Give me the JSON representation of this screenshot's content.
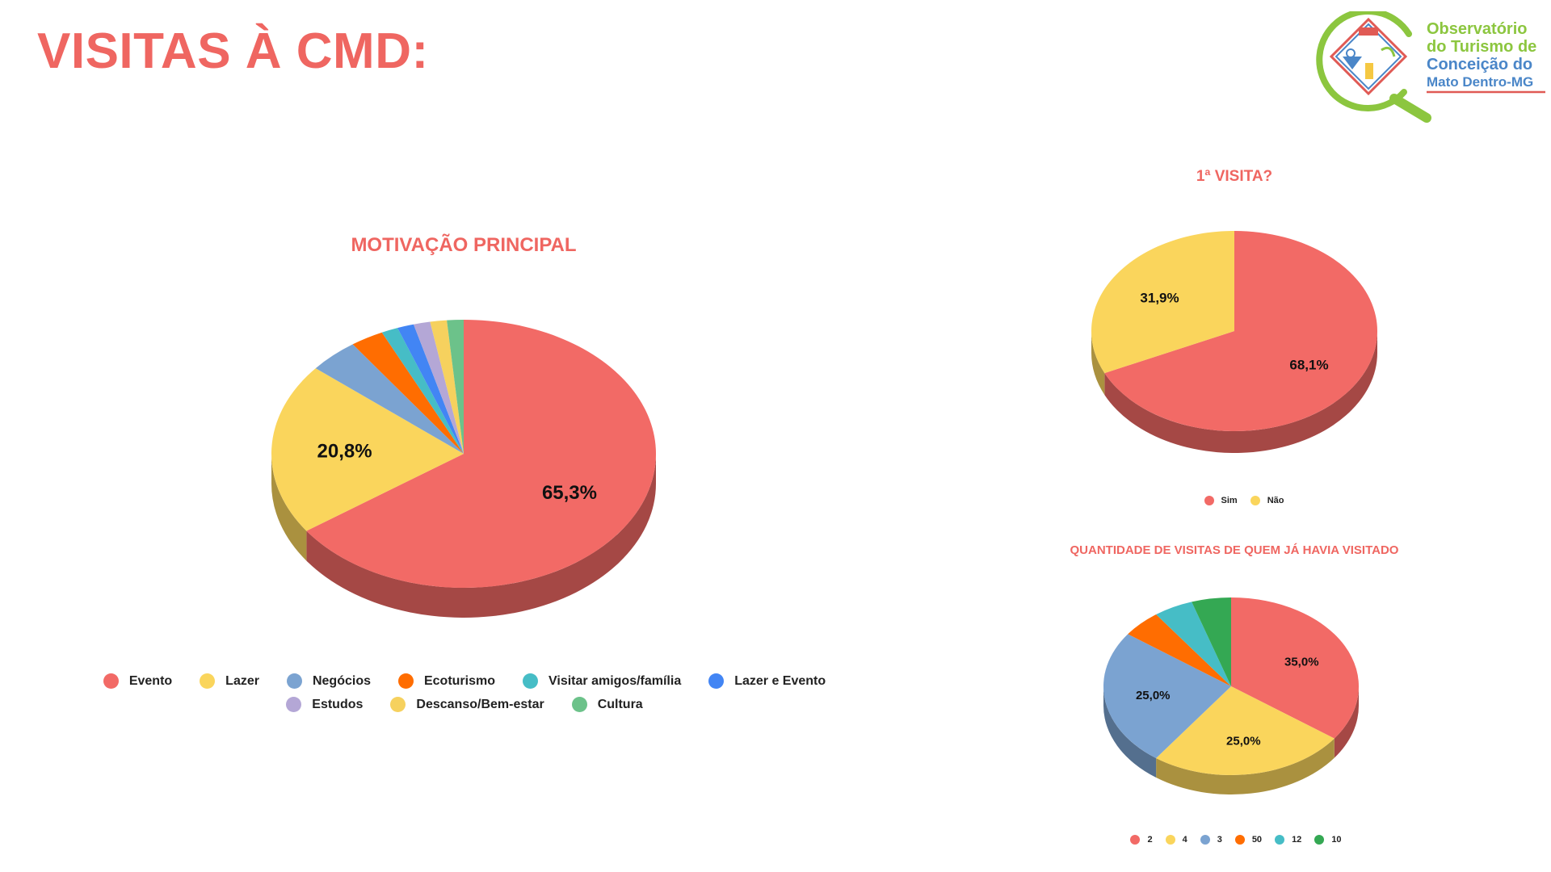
{
  "page": {
    "title": "VISITAS À CMD:"
  },
  "logo": {
    "line1": "Observatório",
    "line2": "do Turismo de",
    "line3": "Conceição do",
    "line4": "Mato Dentro-MG",
    "colors": {
      "green": "#8cc63f",
      "blue": "#4a86c8",
      "red": "#e05a55",
      "yellow": "#f5c842"
    }
  },
  "chart_data": [
    {
      "id": "motivacao",
      "type": "pie",
      "title": "MOTIVAÇÃO PRINCIPAL",
      "categories": [
        "Evento",
        "Lazer",
        "Negócios",
        "Ecoturismo",
        "Visitar amigos/família",
        "Lazer e Evento",
        "Estudos",
        "Descanso/Bem-estar",
        "Cultura"
      ],
      "values": [
        65.3,
        20.8,
        4.2,
        2.8,
        1.4,
        1.4,
        1.4,
        1.4,
        1.4
      ],
      "data_labels": [
        "65,3%",
        "20,8%",
        "",
        "",
        "",
        "",
        "",
        "",
        ""
      ],
      "colors": [
        "#f26a66",
        "#fad55c",
        "#7ba3d1",
        "#ff6d01",
        "#46bdc6",
        "#4285f4",
        "#b4a7d6",
        "#f6d15e",
        "#6cc28a"
      ],
      "legend_position": "bottom"
    },
    {
      "id": "primeira-visita",
      "type": "pie",
      "title": "1ª VISITA?",
      "categories": [
        "Sim",
        "Não"
      ],
      "values": [
        68.1,
        31.9
      ],
      "data_labels": [
        "68,1%",
        "31,9%"
      ],
      "colors": [
        "#f26a66",
        "#fad55c"
      ],
      "legend_position": "bottom"
    },
    {
      "id": "quantidade",
      "type": "pie",
      "title": "QUANTIDADE DE VISITAS DE QUEM JÁ HAVIA VISITADO",
      "categories": [
        "2",
        "4",
        "3",
        "50",
        "12",
        "10"
      ],
      "values": [
        35.0,
        25.0,
        25.0,
        5.0,
        5.0,
        5.0
      ],
      "data_labels": [
        "35,0%",
        "25,0%",
        "25,0%",
        "",
        "",
        ""
      ],
      "colors": [
        "#f26a66",
        "#fad55c",
        "#7ba3d1",
        "#ff6d01",
        "#46bdc6",
        "#34a853"
      ],
      "legend_position": "bottom"
    }
  ]
}
